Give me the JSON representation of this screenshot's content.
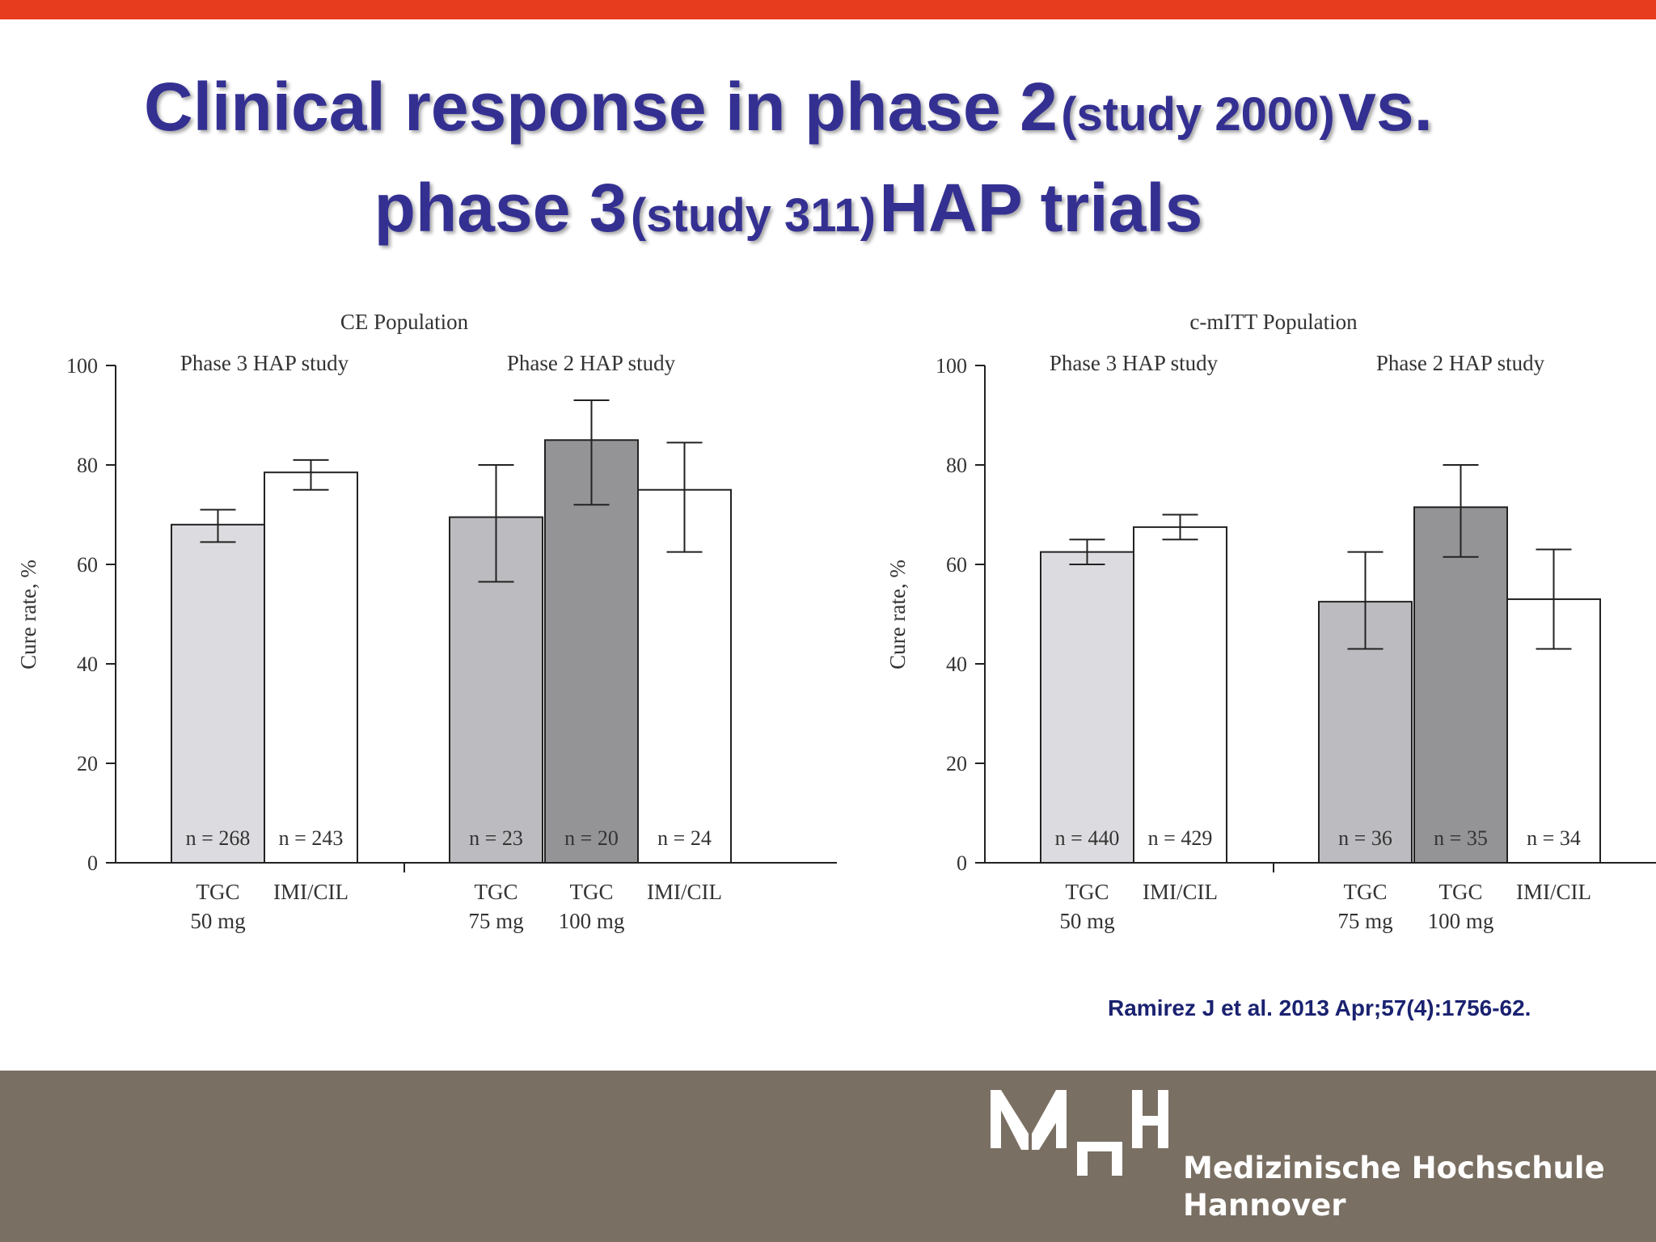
{
  "slide": {
    "title_part1": "Clinical response in phase 2",
    "title_part2": "(study 2000)",
    "title_part3": "vs.",
    "title_part4": "phase 3",
    "title_part5": "(study 311)",
    "title_part6": "HAP trials",
    "citation": "Ramirez J et al. 2013 Apr;57(4):1756-62.",
    "footer": {
      "logo_text": "MHH",
      "institution_line1": "Medizinische Hochschule",
      "institution_line2": "Hannover"
    },
    "colors": {
      "top_bar": "#e83c1e",
      "title": "#343092",
      "footer": "#7a6f63",
      "citation": "#1a2270"
    }
  },
  "chart_data": [
    {
      "type": "bar",
      "title": "CE Population",
      "ylabel": "Cure rate, %",
      "ylim": [
        0,
        100
      ],
      "yticks": [
        0,
        20,
        40,
        60,
        80,
        100
      ],
      "group_labels": [
        "Phase 3 HAP study",
        "Phase 2 HAP study"
      ],
      "bars": [
        {
          "group": 0,
          "label": [
            "TGC",
            "50 mg"
          ],
          "value": 68,
          "err_low": 64.5,
          "err_high": 71,
          "n_label": "n = 268",
          "color": "#dcdce0"
        },
        {
          "group": 0,
          "label": [
            "IMI/CIL"
          ],
          "value": 78.5,
          "err_low": 75,
          "err_high": 81,
          "n_label": "n = 243",
          "color": "#ffffff"
        },
        {
          "group": 1,
          "label": [
            "TGC",
            "75 mg"
          ],
          "value": 69.5,
          "err_low": 56.5,
          "err_high": 80,
          "n_label": "n = 23",
          "color": "#bcbcc0"
        },
        {
          "group": 1,
          "label": [
            "TGC",
            "100 mg"
          ],
          "value": 85,
          "err_low": 72,
          "err_high": 93,
          "n_label": "n = 20",
          "color": "#949496"
        },
        {
          "group": 1,
          "label": [
            "IMI/CIL"
          ],
          "value": 75,
          "err_low": 62.5,
          "err_high": 84.5,
          "n_label": "n = 24",
          "color": "#ffffff"
        }
      ]
    },
    {
      "type": "bar",
      "title": "c-mITT Population",
      "ylabel": "Cure rate, %",
      "ylim": [
        0,
        100
      ],
      "yticks": [
        0,
        20,
        40,
        60,
        80,
        100
      ],
      "group_labels": [
        "Phase 3 HAP study",
        "Phase 2 HAP study"
      ],
      "bars": [
        {
          "group": 0,
          "label": [
            "TGC",
            "50 mg"
          ],
          "value": 62.5,
          "err_low": 60,
          "err_high": 65,
          "n_label": "n = 440",
          "color": "#dcdce0"
        },
        {
          "group": 0,
          "label": [
            "IMI/CIL"
          ],
          "value": 67.5,
          "err_low": 65,
          "err_high": 70,
          "n_label": "n = 429",
          "color": "#ffffff"
        },
        {
          "group": 1,
          "label": [
            "TGC",
            "75 mg"
          ],
          "value": 52.5,
          "err_low": 43,
          "err_high": 62.5,
          "n_label": "n = 36",
          "color": "#bcbcc0"
        },
        {
          "group": 1,
          "label": [
            "TGC",
            "100 mg"
          ],
          "value": 71.5,
          "err_low": 61.5,
          "err_high": 80,
          "n_label": "n = 35",
          "color": "#949496"
        },
        {
          "group": 1,
          "label": [
            "IMI/CIL"
          ],
          "value": 53,
          "err_low": 43,
          "err_high": 63,
          "n_label": "n = 34",
          "color": "#ffffff"
        }
      ]
    }
  ]
}
